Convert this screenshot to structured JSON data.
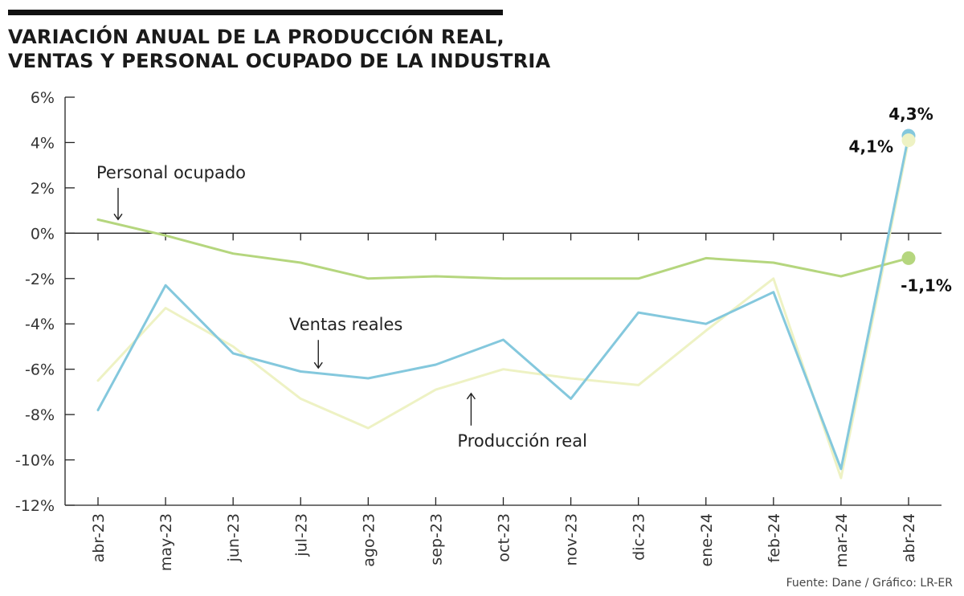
{
  "title_lines": [
    "VARIACIÓN ANUAL DE LA PRODUCCIÓN REAL,",
    "VENTAS Y PERSONAL OCUPADO DE LA INDUSTRIA"
  ],
  "source": "Fuente: Dane / Gráfico: LR-ER",
  "colors": {
    "personal": "#b5d67e",
    "ventas": "#84c8dd",
    "produccion": "#eef2c4",
    "rule": "#111111"
  },
  "chart_data": {
    "type": "line",
    "title": "VARIACIÓN ANUAL DE LA PRODUCCIÓN REAL, VENTAS Y PERSONAL OCUPADO DE LA INDUSTRIA",
    "xlabel": "",
    "ylabel": "",
    "categories": [
      "abr-23",
      "may-23",
      "jun-23",
      "jul-23",
      "ago-23",
      "sep-23",
      "oct-23",
      "nov-23",
      "dic-23",
      "ene-24",
      "feb-24",
      "mar-24",
      "abr-24"
    ],
    "ylim": [
      -12,
      6
    ],
    "yticks": [
      6,
      4,
      2,
      0,
      -2,
      -4,
      -6,
      -8,
      -10,
      -12
    ],
    "ytick_labels": [
      "6%",
      "4%",
      "2%",
      "0%",
      "-2%",
      "-4%",
      "-6%",
      "-8%",
      "-10%",
      "-12%"
    ],
    "grid": false,
    "series": [
      {
        "key": "personal",
        "name": "Personal ocupado",
        "values": [
          0.6,
          -0.1,
          -0.9,
          -1.3,
          -2.0,
          -1.9,
          -2.0,
          -2.0,
          -2.0,
          -1.1,
          -1.3,
          -1.9,
          -1.1
        ]
      },
      {
        "key": "ventas",
        "name": "Ventas reales",
        "values": [
          -7.8,
          -2.3,
          -5.3,
          -6.1,
          -6.4,
          -5.8,
          -4.7,
          -7.3,
          -3.5,
          -4.0,
          -2.6,
          -10.4,
          4.3
        ]
      },
      {
        "key": "produccion",
        "name": "Producción real",
        "values": [
          -6.5,
          -3.3,
          -5.0,
          -7.3,
          -8.6,
          -6.9,
          -6.0,
          -6.4,
          -6.7,
          -4.3,
          -2.0,
          -10.8,
          4.1
        ]
      }
    ],
    "end_labels": [
      {
        "series": "ventas",
        "text": "4,3%"
      },
      {
        "series": "produccion",
        "text": "4,1%"
      },
      {
        "series": "personal",
        "text": "-1,1%"
      }
    ],
    "annotations": [
      {
        "series": "personal",
        "text": "Personal ocupado",
        "at_index": 0
      },
      {
        "series": "ventas",
        "text": "Ventas reales",
        "at_index": 3
      },
      {
        "series": "produccion",
        "text": "Producción real",
        "at_index": 5
      }
    ]
  }
}
